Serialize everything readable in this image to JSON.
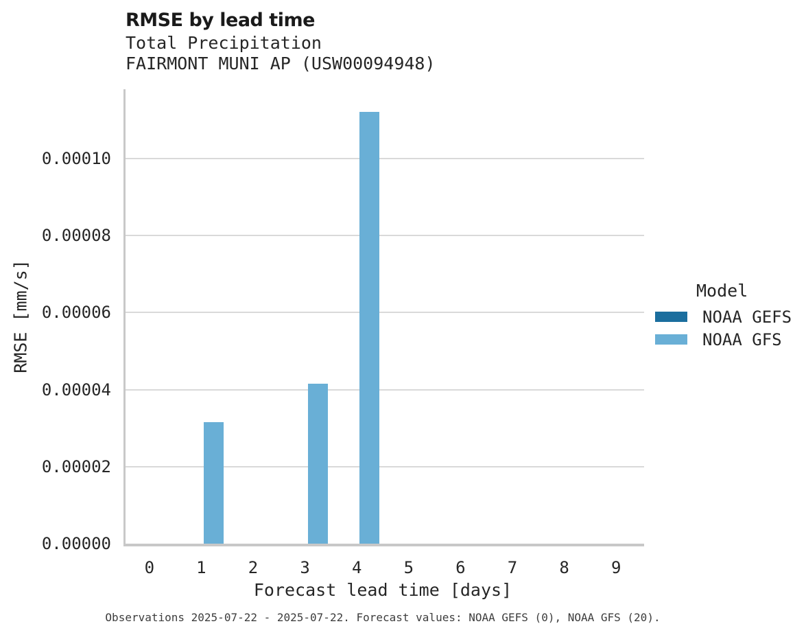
{
  "header": {
    "title": "RMSE by lead time",
    "subtitle_line1": "Total Precipitation",
    "subtitle_line2": "FAIRMONT MUNI AP (USW00094948)"
  },
  "caption": "Observations 2025-07-22 - 2025-07-22. Forecast values: NOAA GEFS (0), NOAA GFS (20).",
  "colors": {
    "noaa_gefs": "#1b6e9e",
    "noaa_gfs": "#69afd6",
    "gridline": "#d9d9d9",
    "axis": "#c8c8c8",
    "text": "#262626",
    "caption_text": "#3d3d3d"
  },
  "chart_data": {
    "type": "bar",
    "title": "RMSE by lead time",
    "subtitle": [
      "Total Precipitation",
      "FAIRMONT MUNI AP (USW00094948)"
    ],
    "xlabel": "Forecast lead time [days]",
    "ylabel": "RMSE [mm/s]",
    "categories": [
      "0",
      "1",
      "2",
      "3",
      "4",
      "5",
      "6",
      "7",
      "8",
      "9"
    ],
    "series": [
      {
        "name": "NOAA GEFS",
        "color": "#1b6e9e",
        "values": [
          null,
          null,
          null,
          null,
          null,
          null,
          null,
          null,
          null,
          null
        ]
      },
      {
        "name": "NOAA GFS",
        "color": "#69afd6",
        "values": [
          null,
          3.16e-05,
          null,
          4.15e-05,
          0.0001122,
          null,
          null,
          null,
          null,
          null
        ]
      }
    ],
    "ylim": [
      0,
      0.000118
    ],
    "yticks": [
      {
        "value": 0.0,
        "label": "0.00000"
      },
      {
        "value": 2e-05,
        "label": "0.00002"
      },
      {
        "value": 4e-05,
        "label": "0.00004"
      },
      {
        "value": 6e-05,
        "label": "0.00006"
      },
      {
        "value": 8e-05,
        "label": "0.00008"
      },
      {
        "value": 0.0001,
        "label": "0.00010"
      }
    ],
    "grid": true,
    "legend_title": "Model",
    "legend_position": "right",
    "caption": "Observations 2025-07-22 - 2025-07-22. Forecast values: NOAA GEFS (0), NOAA GFS (20)."
  }
}
